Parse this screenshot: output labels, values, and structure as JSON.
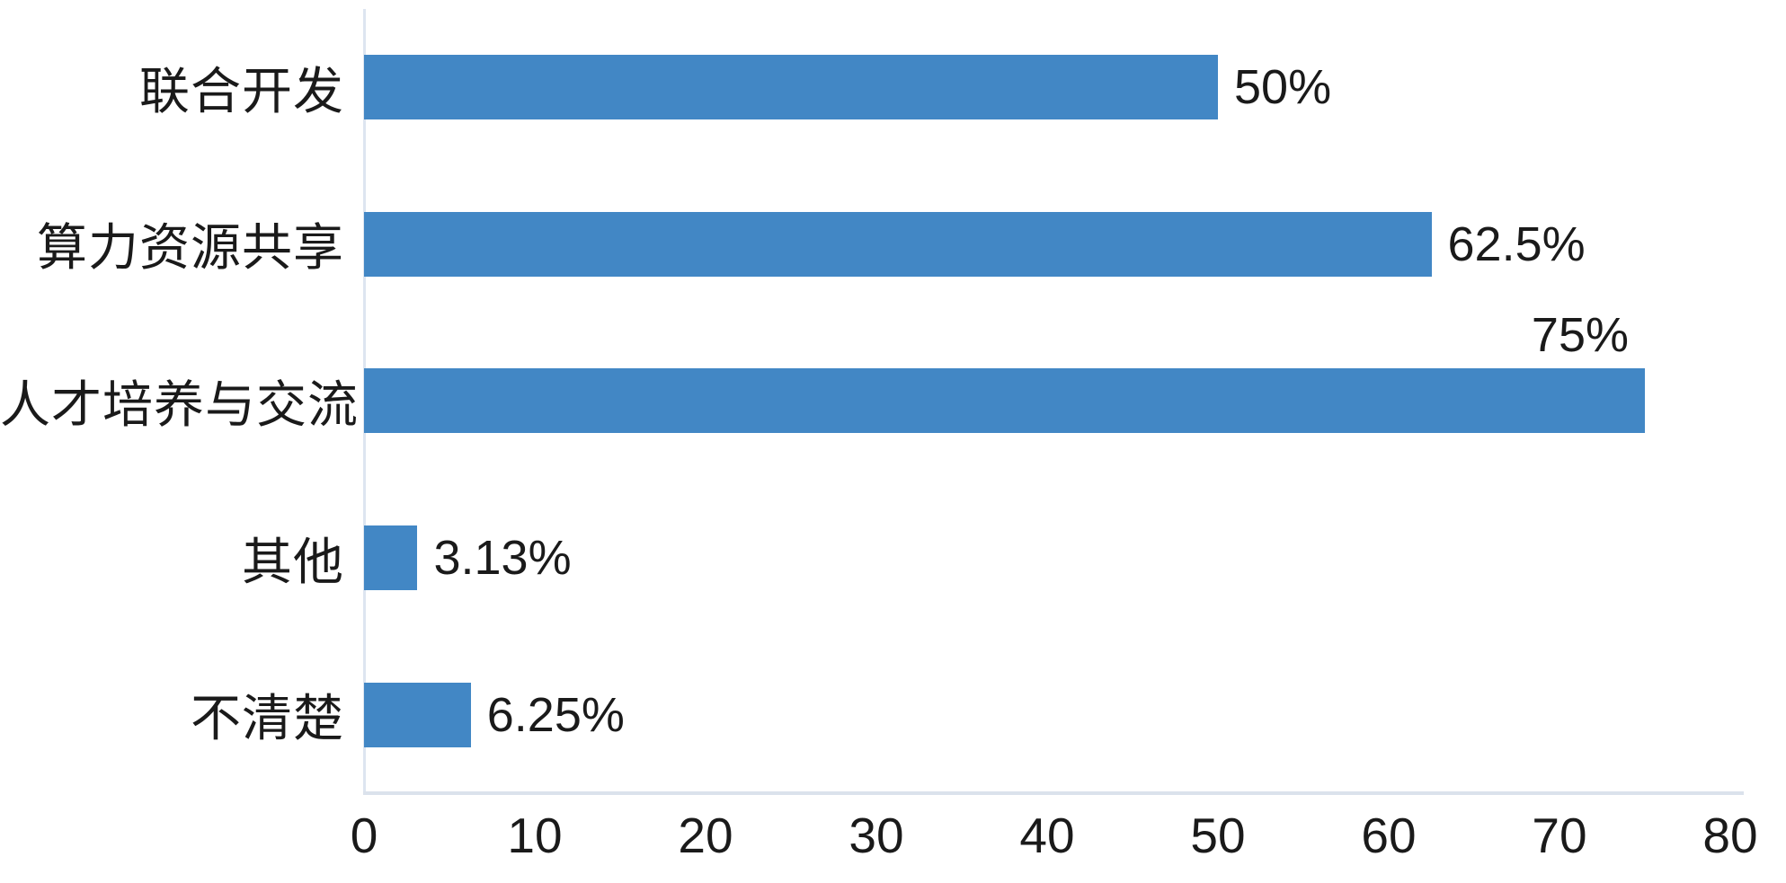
{
  "chart_data": {
    "type": "bar",
    "orientation": "horizontal",
    "title": "",
    "xlabel": "",
    "ylabel": "",
    "categories": [
      "联合开发",
      "算力资源共享",
      "人才培养与交流",
      "其他",
      "不清楚"
    ],
    "values": [
      50,
      62.5,
      75,
      3.13,
      6.25
    ],
    "value_labels": [
      "50%",
      "62.5%",
      "75%",
      "3.13%",
      "6.25%"
    ],
    "value_label_positions": [
      "right",
      "right",
      "above",
      "right",
      "right"
    ],
    "xlim": [
      0,
      80
    ],
    "x_ticks": [
      0,
      10,
      20,
      30,
      40,
      50,
      60,
      70,
      80
    ],
    "grid": false,
    "legend": false,
    "colors": {
      "bar": "#4287C5",
      "text": "#1a1a1a",
      "axis_line_vertical": "#dde5f0",
      "axis_line_horizontal": "#dbe2ec",
      "background": "#ffffff"
    }
  }
}
